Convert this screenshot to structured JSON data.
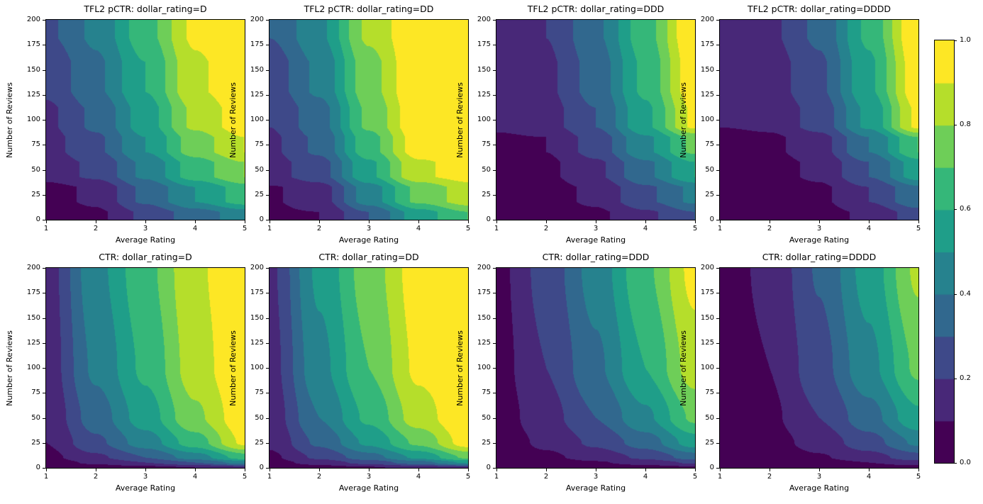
{
  "figure": {
    "background": "#ffffff",
    "colormap": "viridis",
    "viridis_stops": [
      "#440154",
      "#482878",
      "#3e4989",
      "#31688e",
      "#26828e",
      "#1f9e89",
      "#35b779",
      "#6ece58",
      "#b5de2b",
      "#fde725"
    ],
    "colorbar": {
      "min": 0.0,
      "max": 1.0,
      "ticks": [
        "0.0",
        "0.2",
        "0.4",
        "0.6",
        "0.8",
        "1.0"
      ]
    }
  },
  "chart_data": [
    {
      "type": "contour",
      "title": "TFL2 pCTR: dollar_rating=D",
      "xlabel": "Average Rating",
      "ylabel": "Number of Reviews",
      "xlim": [
        1,
        5
      ],
      "ylim": [
        0,
        200
      ],
      "xticks": [
        1,
        2,
        3,
        4,
        5
      ],
      "yticks": [
        0,
        25,
        50,
        75,
        100,
        125,
        150,
        175,
        200
      ],
      "levels": [
        0,
        0.1,
        0.2,
        0.3,
        0.4,
        0.5,
        0.6,
        0.7,
        0.8,
        0.9,
        1.0
      ],
      "style": "stepped",
      "grid_x": [
        1,
        2,
        3,
        4,
        5
      ],
      "grid_y": [
        0,
        25,
        50,
        75,
        100,
        140,
        200
      ],
      "values": [
        [
          0.05,
          0.08,
          0.22,
          0.35,
          0.45
        ],
        [
          0.06,
          0.12,
          0.32,
          0.5,
          0.65
        ],
        [
          0.14,
          0.22,
          0.42,
          0.65,
          0.8
        ],
        [
          0.16,
          0.28,
          0.5,
          0.75,
          0.9
        ],
        [
          0.18,
          0.32,
          0.55,
          0.82,
          0.96
        ],
        [
          0.22,
          0.38,
          0.6,
          0.88,
          0.99
        ],
        [
          0.28,
          0.42,
          0.66,
          0.92,
          1.0
        ]
      ]
    },
    {
      "type": "contour",
      "title": "TFL2 pCTR: dollar_rating=DD",
      "xlabel": "Average Rating",
      "ylabel": "Number of Reviews",
      "xlim": [
        1,
        5
      ],
      "ylim": [
        0,
        200
      ],
      "xticks": [
        1,
        2,
        3,
        4,
        5
      ],
      "yticks": [
        0,
        25,
        50,
        75,
        100,
        125,
        150,
        175,
        200
      ],
      "levels": [
        0,
        0.1,
        0.2,
        0.3,
        0.4,
        0.5,
        0.6,
        0.7,
        0.8,
        0.9,
        1.0
      ],
      "style": "stepped",
      "grid_x": [
        1,
        2,
        3,
        4,
        5
      ],
      "grid_y": [
        0,
        25,
        50,
        75,
        100,
        140,
        200
      ],
      "values": [
        [
          0.08,
          0.1,
          0.3,
          0.55,
          0.7
        ],
        [
          0.09,
          0.15,
          0.45,
          0.72,
          0.85
        ],
        [
          0.16,
          0.26,
          0.58,
          0.88,
          0.95
        ],
        [
          0.18,
          0.32,
          0.66,
          0.95,
          1.0
        ],
        [
          0.2,
          0.36,
          0.72,
          0.98,
          1.0
        ],
        [
          0.24,
          0.42,
          0.76,
          1.0,
          1.0
        ],
        [
          0.3,
          0.48,
          0.82,
          1.0,
          1.0
        ]
      ]
    },
    {
      "type": "contour",
      "title": "TFL2 pCTR: dollar_rating=DDD",
      "xlabel": "Average Rating",
      "ylabel": "Number of Reviews",
      "xlim": [
        1,
        5
      ],
      "ylim": [
        0,
        200
      ],
      "xticks": [
        1,
        2,
        3,
        4,
        5
      ],
      "yticks": [
        0,
        25,
        50,
        75,
        100,
        125,
        150,
        175,
        200
      ],
      "levels": [
        0,
        0.1,
        0.2,
        0.3,
        0.4,
        0.5,
        0.6,
        0.7,
        0.8,
        0.9,
        1.0
      ],
      "style": "stepped",
      "grid_x": [
        1,
        2,
        3,
        4,
        5
      ],
      "grid_y": [
        0,
        25,
        50,
        75,
        100,
        140,
        200
      ],
      "values": [
        [
          0.04,
          0.05,
          0.08,
          0.18,
          0.3
        ],
        [
          0.05,
          0.06,
          0.12,
          0.28,
          0.42
        ],
        [
          0.06,
          0.08,
          0.18,
          0.38,
          0.6
        ],
        [
          0.08,
          0.1,
          0.24,
          0.48,
          0.72
        ],
        [
          0.12,
          0.16,
          0.3,
          0.58,
          0.92
        ],
        [
          0.14,
          0.18,
          0.34,
          0.62,
          0.97
        ],
        [
          0.16,
          0.2,
          0.38,
          0.66,
          1.0
        ]
      ]
    },
    {
      "type": "contour",
      "title": "TFL2 pCTR: dollar_rating=DDDD",
      "xlabel": "Average Rating",
      "ylabel": "Number of Reviews",
      "xlim": [
        1,
        5
      ],
      "ylim": [
        0,
        200
      ],
      "xticks": [
        1,
        2,
        3,
        4,
        5
      ],
      "yticks": [
        0,
        25,
        50,
        75,
        100,
        125,
        150,
        175,
        200
      ],
      "levels": [
        0,
        0.1,
        0.2,
        0.3,
        0.4,
        0.5,
        0.6,
        0.7,
        0.8,
        0.9,
        1.0
      ],
      "style": "stepped",
      "grid_x": [
        1,
        2,
        3,
        4,
        5
      ],
      "grid_y": [
        0,
        25,
        50,
        75,
        100,
        140,
        200
      ],
      "values": [
        [
          0.03,
          0.04,
          0.06,
          0.12,
          0.25
        ],
        [
          0.04,
          0.05,
          0.08,
          0.2,
          0.38
        ],
        [
          0.05,
          0.06,
          0.12,
          0.3,
          0.55
        ],
        [
          0.06,
          0.08,
          0.16,
          0.4,
          0.7
        ],
        [
          0.1,
          0.12,
          0.24,
          0.52,
          0.92
        ],
        [
          0.12,
          0.15,
          0.28,
          0.58,
          0.97
        ],
        [
          0.14,
          0.18,
          0.32,
          0.62,
          1.0
        ]
      ]
    },
    {
      "type": "contour",
      "title": "CTR: dollar_rating=D",
      "xlabel": "Average Rating",
      "ylabel": "Number of Reviews",
      "xlim": [
        1,
        5
      ],
      "ylim": [
        0,
        200
      ],
      "xticks": [
        1,
        2,
        3,
        4,
        5
      ],
      "yticks": [
        0,
        25,
        50,
        75,
        100,
        125,
        150,
        175,
        200
      ],
      "levels": [
        0,
        0.1,
        0.2,
        0.3,
        0.4,
        0.5,
        0.6,
        0.7,
        0.8,
        0.9,
        1.0
      ],
      "style": "smooth",
      "grid_x": [
        1,
        2,
        3,
        4,
        5
      ],
      "grid_y": [
        0,
        5,
        10,
        25,
        50,
        100,
        200
      ],
      "values": [
        [
          0.02,
          0.05,
          0.07,
          0.1,
          0.15
        ],
        [
          0.05,
          0.12,
          0.2,
          0.3,
          0.45
        ],
        [
          0.07,
          0.18,
          0.3,
          0.45,
          0.65
        ],
        [
          0.1,
          0.28,
          0.45,
          0.65,
          0.92
        ],
        [
          0.12,
          0.35,
          0.55,
          0.78,
          0.97
        ],
        [
          0.14,
          0.42,
          0.62,
          0.85,
          1.0
        ],
        [
          0.15,
          0.47,
          0.67,
          0.88,
          1.0
        ]
      ]
    },
    {
      "type": "contour",
      "title": "CTR: dollar_rating=DD",
      "xlabel": "Average Rating",
      "ylabel": "Number of Reviews",
      "xlim": [
        1,
        5
      ],
      "ylim": [
        0,
        200
      ],
      "xticks": [
        1,
        2,
        3,
        4,
        5
      ],
      "yticks": [
        0,
        25,
        50,
        75,
        100,
        125,
        150,
        175,
        200
      ],
      "levels": [
        0,
        0.1,
        0.2,
        0.3,
        0.4,
        0.5,
        0.6,
        0.7,
        0.8,
        0.9,
        1.0
      ],
      "style": "smooth",
      "grid_x": [
        1,
        2,
        3,
        4,
        5
      ],
      "grid_y": [
        0,
        5,
        10,
        25,
        50,
        100,
        200
      ],
      "values": [
        [
          0.02,
          0.06,
          0.09,
          0.13,
          0.18
        ],
        [
          0.06,
          0.14,
          0.24,
          0.36,
          0.52
        ],
        [
          0.08,
          0.22,
          0.36,
          0.52,
          0.72
        ],
        [
          0.12,
          0.32,
          0.52,
          0.72,
          0.95
        ],
        [
          0.14,
          0.4,
          0.62,
          0.85,
          1.0
        ],
        [
          0.16,
          0.47,
          0.7,
          0.92,
          1.0
        ],
        [
          0.18,
          0.52,
          0.75,
          0.95,
          1.0
        ]
      ]
    },
    {
      "type": "contour",
      "title": "CTR: dollar_rating=DDD",
      "xlabel": "Average Rating",
      "ylabel": "Number of Reviews",
      "xlim": [
        1,
        5
      ],
      "ylim": [
        0,
        200
      ],
      "xticks": [
        1,
        2,
        3,
        4,
        5
      ],
      "yticks": [
        0,
        25,
        50,
        75,
        100,
        125,
        150,
        175,
        200
      ],
      "levels": [
        0,
        0.1,
        0.2,
        0.3,
        0.4,
        0.5,
        0.6,
        0.7,
        0.8,
        0.9,
        1.0
      ],
      "style": "smooth",
      "grid_x": [
        1,
        2,
        3,
        4,
        5
      ],
      "grid_y": [
        0,
        5,
        10,
        25,
        50,
        100,
        200
      ],
      "values": [
        [
          0.01,
          0.02,
          0.04,
          0.06,
          0.08
        ],
        [
          0.02,
          0.05,
          0.09,
          0.14,
          0.22
        ],
        [
          0.03,
          0.08,
          0.14,
          0.22,
          0.35
        ],
        [
          0.04,
          0.12,
          0.22,
          0.35,
          0.55
        ],
        [
          0.05,
          0.16,
          0.3,
          0.48,
          0.72
        ],
        [
          0.06,
          0.2,
          0.38,
          0.6,
          0.85
        ],
        [
          0.07,
          0.24,
          0.44,
          0.68,
          0.93
        ]
      ]
    },
    {
      "type": "contour",
      "title": "CTR: dollar_rating=DDDD",
      "xlabel": "Average Rating",
      "ylabel": "Number of Reviews",
      "xlim": [
        1,
        5
      ],
      "ylim": [
        0,
        200
      ],
      "xticks": [
        1,
        2,
        3,
        4,
        5
      ],
      "yticks": [
        0,
        25,
        50,
        75,
        100,
        125,
        150,
        175,
        200
      ],
      "levels": [
        0,
        0.1,
        0.2,
        0.3,
        0.4,
        0.5,
        0.6,
        0.7,
        0.8,
        0.9,
        1.0
      ],
      "style": "smooth",
      "grid_x": [
        1,
        2,
        3,
        4,
        5
      ],
      "grid_y": [
        0,
        5,
        10,
        25,
        50,
        100,
        200
      ],
      "values": [
        [
          0.01,
          0.02,
          0.03,
          0.04,
          0.06
        ],
        [
          0.02,
          0.03,
          0.06,
          0.1,
          0.16
        ],
        [
          0.02,
          0.04,
          0.09,
          0.16,
          0.26
        ],
        [
          0.03,
          0.06,
          0.14,
          0.26,
          0.42
        ],
        [
          0.04,
          0.08,
          0.2,
          0.36,
          0.58
        ],
        [
          0.05,
          0.1,
          0.26,
          0.47,
          0.72
        ],
        [
          0.06,
          0.12,
          0.31,
          0.54,
          0.82
        ]
      ]
    }
  ]
}
